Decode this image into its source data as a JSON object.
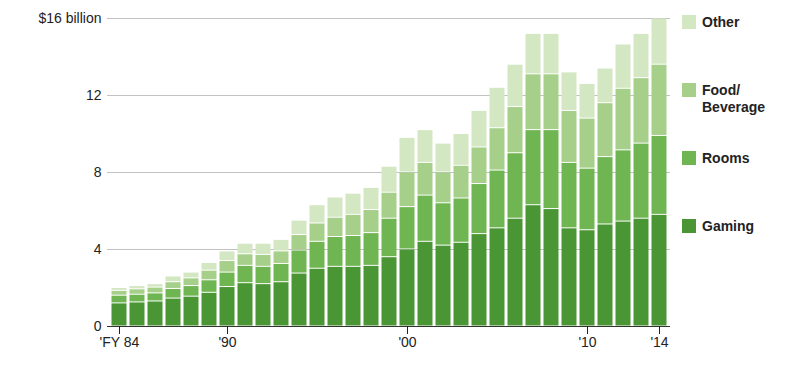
{
  "chart_data": {
    "type": "bar",
    "stacked": true,
    "categories": [
      "'FY 84",
      null,
      null,
      null,
      null,
      null,
      "'90",
      null,
      null,
      null,
      null,
      null,
      null,
      null,
      null,
      null,
      "'00",
      null,
      null,
      null,
      null,
      null,
      null,
      null,
      null,
      null,
      "'10",
      null,
      null,
      null,
      "'14"
    ],
    "series": [
      {
        "name": "Gaming",
        "color": "#4a9634",
        "values": [
          1.2,
          1.25,
          1.3,
          1.45,
          1.55,
          1.75,
          2.05,
          2.25,
          2.2,
          2.3,
          2.75,
          3.0,
          3.1,
          3.1,
          3.15,
          3.6,
          4.0,
          4.4,
          4.2,
          4.35,
          4.8,
          5.1,
          5.6,
          6.3,
          6.1,
          5.1,
          5.0,
          5.3,
          5.45,
          5.6,
          5.8
        ]
      },
      {
        "name": "Rooms",
        "color": "#6fb552",
        "values": [
          0.4,
          0.4,
          0.42,
          0.5,
          0.55,
          0.65,
          0.75,
          0.9,
          0.9,
          0.95,
          1.2,
          1.4,
          1.55,
          1.6,
          1.7,
          2.0,
          2.2,
          2.4,
          2.2,
          2.3,
          2.6,
          3.0,
          3.4,
          3.9,
          4.1,
          3.4,
          3.2,
          3.5,
          3.7,
          3.9,
          4.1
        ]
      },
      {
        "name": "Food/Beverage",
        "color": "#a6cf8a",
        "values": [
          0.25,
          0.28,
          0.3,
          0.35,
          0.4,
          0.5,
          0.6,
          0.6,
          0.62,
          0.65,
          0.8,
          0.95,
          1.0,
          1.1,
          1.2,
          1.35,
          1.8,
          1.7,
          1.6,
          1.7,
          1.9,
          2.2,
          2.4,
          2.9,
          2.9,
          2.7,
          2.6,
          2.8,
          3.2,
          3.4,
          3.7
        ]
      },
      {
        "name": "Other",
        "color": "#d3e7c2",
        "values": [
          0.15,
          0.17,
          0.18,
          0.3,
          0.3,
          0.4,
          0.5,
          0.55,
          0.58,
          0.6,
          0.75,
          0.95,
          1.05,
          1.1,
          1.15,
          1.35,
          1.8,
          1.7,
          1.5,
          1.65,
          1.9,
          2.1,
          2.2,
          2.1,
          2.1,
          2.0,
          1.8,
          1.8,
          2.3,
          2.3,
          2.4
        ]
      }
    ],
    "ylim": [
      0,
      16
    ],
    "yticks": [
      0,
      4,
      8,
      12,
      {
        "value": 16,
        "label": "$16 billion"
      }
    ],
    "grid": true,
    "legend": "right"
  }
}
